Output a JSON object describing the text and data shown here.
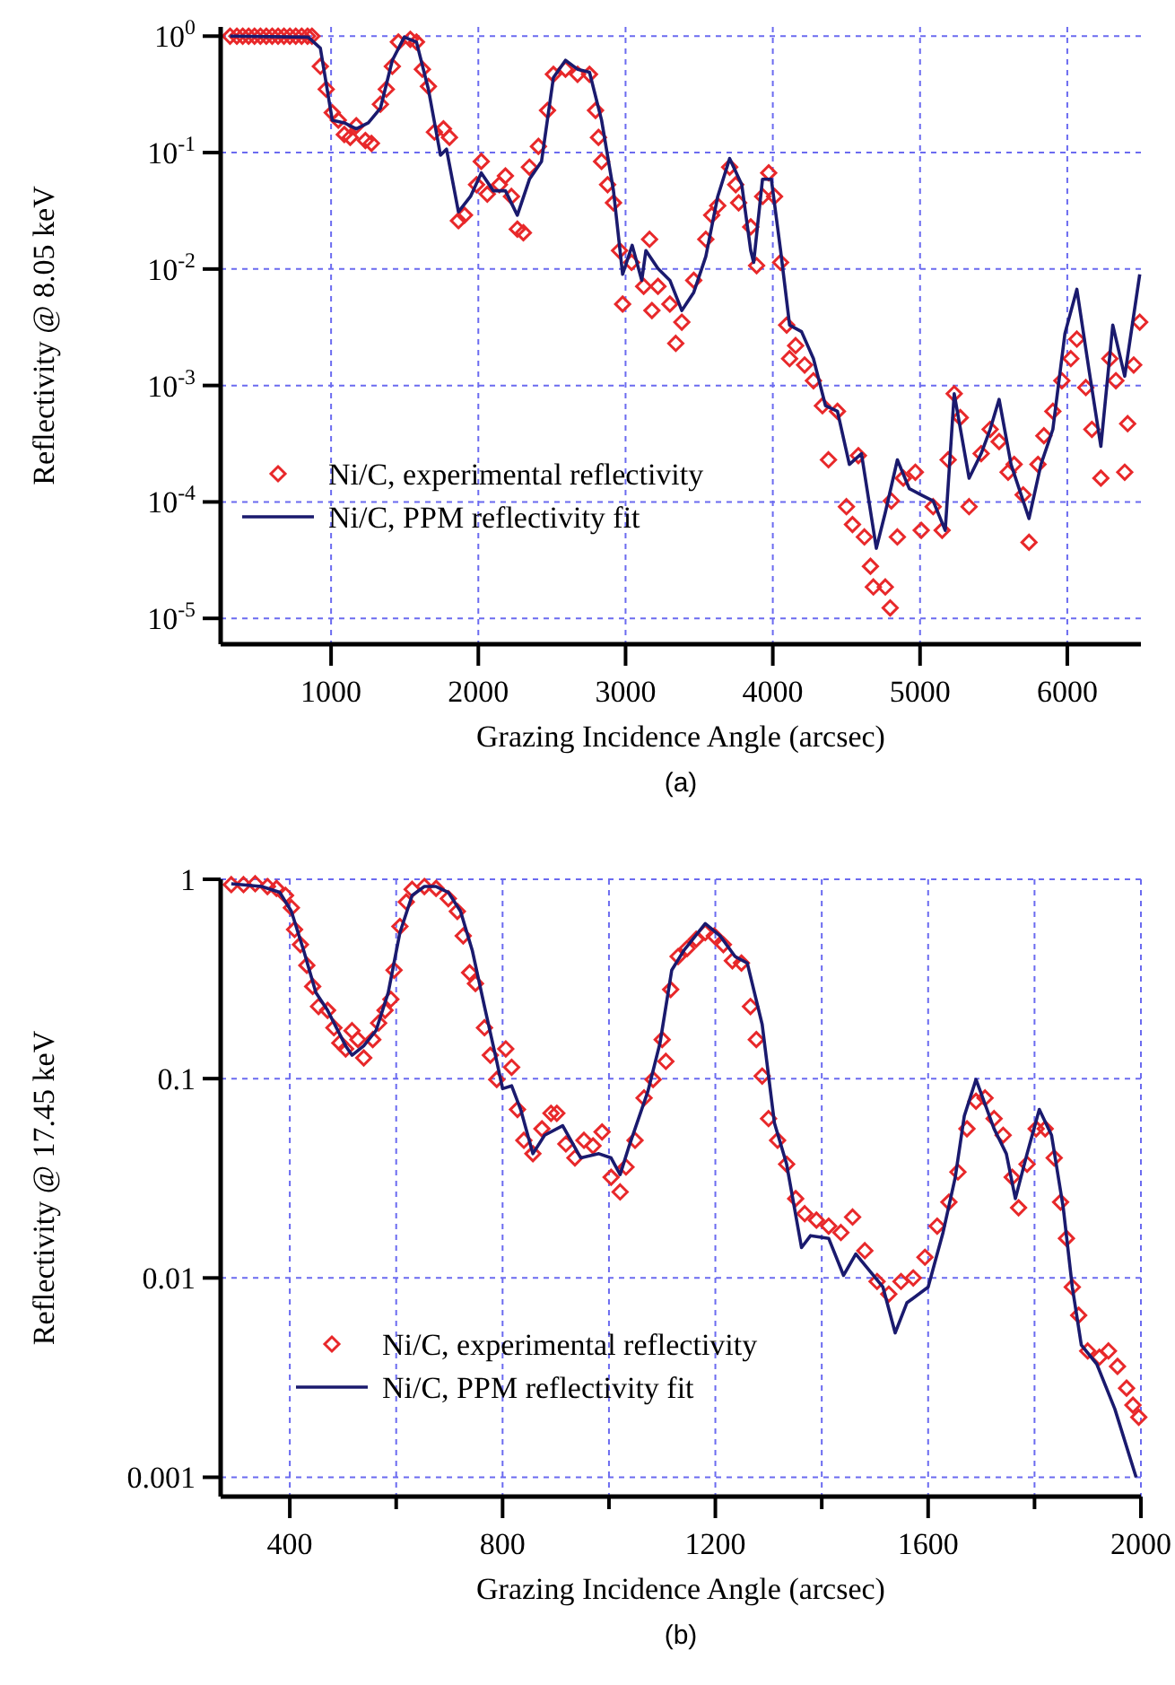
{
  "chart_data": [
    {
      "type": "scatter",
      "xlabel": "Grazing Incidence Angle (arcsec)",
      "ylabel": "Reflectivity @ 8.05 keV",
      "annotations": [
        "(a)"
      ],
      "log": "y",
      "grid": true,
      "legend": "bottom left",
      "xlim": [
        250,
        6500
      ],
      "ylim": [
        6e-06,
        1.2
      ],
      "xticks": [
        1000,
        2000,
        3000,
        4000,
        5000,
        6000
      ],
      "yticks": [
        {
          "value": 1,
          "label": "10$^{0}$"
        },
        {
          "value": 0.1,
          "label": "10$^{-1}$"
        },
        {
          "value": 0.01,
          "label": "10$^{-2}$"
        },
        {
          "value": 0.001,
          "label": "10$^{-3}$"
        },
        {
          "value": 0.0001,
          "label": "10$^{-4}$"
        },
        {
          "value": 1e-05,
          "label": "10$^{-5}$"
        }
      ],
      "series": [
        {
          "name": "Ni/C, experimental reflectivity",
          "marker": "diamond",
          "color": "#e8282a",
          "x": [
            314,
            360,
            400,
            440,
            480,
            520,
            560,
            600,
            640,
            680,
            720,
            760,
            800,
            840,
            870,
            927,
            967,
            1008,
            1049,
            1090,
            1130,
            1171,
            1233,
            1274,
            1335,
            1375,
            1416,
            1457,
            1538,
            1580,
            1620,
            1661,
            1702,
            1763,
            1804,
            1865,
            1906,
            1988,
            2020,
            2061,
            2143,
            2184,
            2225,
            2265,
            2306,
            2347,
            2408,
            2470,
            2510,
            2592,
            2674,
            2755,
            2796,
            2816,
            2837,
            2878,
            2918,
            2959,
            2980,
            3041,
            3123,
            3163,
            3179,
            3220,
            3301,
            3341,
            3382,
            3463,
            3545,
            3585,
            3626,
            3707,
            3748,
            3768,
            3850,
            3890,
            3931,
            3972,
            4012,
            4053,
            4094,
            4114,
            4155,
            4216,
            4276,
            4337,
            4378,
            4439,
            4500,
            4541,
            4581,
            4622,
            4663,
            4683,
            4764,
            4797,
            4805,
            4846,
            4886,
            4968,
            5008,
            5089,
            5150,
            5191,
            5232,
            5273,
            5333,
            5415,
            5476,
            5537,
            5598,
            5639,
            5700,
            5740,
            5801,
            5841,
            5902,
            5963,
            6024,
            6065,
            6126,
            6167,
            6228,
            6289,
            6330,
            6390,
            6410,
            6451,
            6492
          ],
          "values": [
            1,
            1,
            1,
            1,
            1,
            1,
            1,
            1,
            1,
            1,
            1,
            1,
            1,
            1,
            1,
            0.55,
            0.35,
            0.22,
            0.19,
            0.143,
            0.135,
            0.17,
            0.127,
            0.12,
            0.26,
            0.35,
            0.55,
            0.89,
            0.94,
            0.89,
            0.52,
            0.37,
            0.15,
            0.16,
            0.135,
            0.026,
            0.029,
            0.053,
            0.084,
            0.044,
            0.053,
            0.063,
            0.042,
            0.022,
            0.0205,
            0.075,
            0.113,
            0.23,
            0.47,
            0.52,
            0.47,
            0.47,
            0.23,
            0.135,
            0.084,
            0.053,
            0.037,
            0.0144,
            0.005,
            0.0114,
            0.0071,
            0.018,
            0.0044,
            0.0071,
            0.005,
            0.0023,
            0.0035,
            0.008,
            0.018,
            0.029,
            0.035,
            0.075,
            0.053,
            0.037,
            0.023,
            0.0107,
            0.042,
            0.067,
            0.042,
            0.0114,
            0.0033,
            0.0017,
            0.0022,
            0.0015,
            0.0011,
            0.00067,
            0.00023,
            0.0006,
            9.1e-05,
            6.4e-05,
            0.00025,
            5e-05,
            2.8e-05,
            1.86e-05,
            1.86e-05,
            1.23e-05,
            0.000102,
            5e-05,
            0.00016,
            0.00018,
            5.7e-05,
            9.1e-05,
            5.7e-05,
            0.00023,
            0.00085,
            0.00053,
            9.1e-05,
            0.00026,
            0.00042,
            0.00033,
            0.00018,
            0.00021,
            0.000115,
            4.5e-05,
            0.00021,
            0.00037,
            0.0006,
            0.0011,
            0.0017,
            0.0025,
            0.00096,
            0.00042,
            0.00016,
            0.0017,
            0.0011,
            0.00018,
            0.00047,
            0.0015,
            0.0035
          ]
        },
        {
          "name": "Ni/C, PPM reflectivity fit",
          "type": "line",
          "marker": "none",
          "color": "#1a1a6e",
          "x": [
            314,
            845,
            927,
            1008,
            1090,
            1171,
            1253,
            1335,
            1416,
            1497,
            1580,
            1661,
            1743,
            1784,
            1865,
            1947,
            2020,
            2102,
            2184,
            2265,
            2347,
            2429,
            2510,
            2592,
            2674,
            2755,
            2837,
            2918,
            2980,
            3045,
            3110,
            3138,
            3220,
            3301,
            3382,
            3463,
            3545,
            3626,
            3707,
            3789,
            3850,
            3870,
            3930,
            3990,
            4053,
            4114,
            4195,
            4276,
            4358,
            4439,
            4520,
            4602,
            4703,
            4764,
            4846,
            4927,
            5008,
            5089,
            5171,
            5232,
            5333,
            5415,
            5476,
            5537,
            5618,
            5740,
            5821,
            5902,
            5984,
            6065,
            6146,
            6228,
            6309,
            6390,
            6492
          ],
          "values": [
            1,
            0.98,
            0.79,
            0.19,
            0.18,
            0.16,
            0.18,
            0.24,
            0.62,
            0.98,
            0.89,
            0.35,
            0.095,
            0.107,
            0.031,
            0.042,
            0.067,
            0.047,
            0.047,
            0.029,
            0.059,
            0.084,
            0.44,
            0.62,
            0.52,
            0.49,
            0.19,
            0.047,
            0.009,
            0.016,
            0.008,
            0.0144,
            0.0101,
            0.008,
            0.0044,
            0.0063,
            0.0128,
            0.042,
            0.089,
            0.053,
            0.0144,
            0.0114,
            0.059,
            0.059,
            0.0144,
            0.0033,
            0.0029,
            0.0017,
            0.00067,
            0.0006,
            0.00021,
            0.00026,
            4e-05,
            8.1e-05,
            0.00023,
            0.00013,
            0.000115,
            0.000102,
            5.7e-05,
            0.00085,
            0.00016,
            0.00026,
            0.00042,
            0.00076,
            0.00021,
            7.2e-05,
            0.00021,
            0.00042,
            0.0028,
            0.0067,
            0.0014,
            0.0003,
            0.0033,
            0.0012,
            0.009
          ]
        }
      ]
    },
    {
      "type": "scatter",
      "xlabel": "Grazing Incidence Angle (arcsec)",
      "ylabel": "Reflectivity @ 17.45 keV",
      "annotations": [
        "(b)"
      ],
      "log": "y",
      "grid": true,
      "legend": "bottom left",
      "xlim": [
        270,
        2000
      ],
      "ylim": [
        0.0008,
        1
      ],
      "xticks": [
        400,
        {
          "value": 600,
          "label": null
        },
        800,
        {
          "value": 1000,
          "label": null
        },
        1200,
        {
          "value": 1400,
          "label": null
        },
        1600,
        {
          "value": 1800,
          "label": null
        },
        2000
      ],
      "yticks": [
        1,
        0.1,
        0.01,
        0.001
      ],
      "series": [
        {
          "name": "Ni/C, experimental reflectivity",
          "marker": "diamond",
          "color": "#e8282a",
          "x": [
            290,
            313,
            335,
            358,
            375,
            392,
            403,
            409,
            420,
            432,
            443,
            454,
            471,
            483,
            494,
            505,
            517,
            528,
            539,
            556,
            567,
            579,
            590,
            596,
            607,
            619,
            630,
            653,
            675,
            698,
            715,
            726,
            738,
            749,
            766,
            777,
            789,
            806,
            817,
            828,
            840,
            857,
            874,
            891,
            902,
            919,
            936,
            953,
            970,
            987,
            1004,
            1021,
            1032,
            1049,
            1066,
            1083,
            1100,
            1107,
            1116,
            1130,
            1147,
            1164,
            1181,
            1198,
            1215,
            1232,
            1249,
            1266,
            1277,
            1288,
            1300,
            1317,
            1334,
            1351,
            1368,
            1390,
            1413,
            1436,
            1458,
            1481,
            1504,
            1526,
            1549,
            1572,
            1594,
            1617,
            1639,
            1656,
            1673,
            1690,
            1707,
            1724,
            1741,
            1758,
            1770,
            1786,
            1803,
            1820,
            1837,
            1849,
            1860,
            1871,
            1883,
            1900,
            1922,
            1939,
            1956,
            1973,
            1985,
            1996
          ],
          "values": [
            0.94,
            0.94,
            0.95,
            0.92,
            0.9,
            0.83,
            0.72,
            0.56,
            0.47,
            0.37,
            0.29,
            0.23,
            0.22,
            0.18,
            0.151,
            0.141,
            0.174,
            0.157,
            0.127,
            0.157,
            0.19,
            0.22,
            0.25,
            0.35,
            0.58,
            0.77,
            0.89,
            0.92,
            0.9,
            0.8,
            0.69,
            0.52,
            0.34,
            0.3,
            0.18,
            0.131,
            0.099,
            0.141,
            0.114,
            0.07,
            0.049,
            0.042,
            0.056,
            0.067,
            0.067,
            0.047,
            0.04,
            0.049,
            0.046,
            0.054,
            0.032,
            0.027,
            0.036,
            0.049,
            0.08,
            0.099,
            0.157,
            0.122,
            0.28,
            0.41,
            0.45,
            0.5,
            0.54,
            0.52,
            0.47,
            0.39,
            0.38,
            0.23,
            0.157,
            0.103,
            0.063,
            0.049,
            0.0372,
            0.025,
            0.021,
            0.0195,
            0.0182,
            0.0169,
            0.0202,
            0.0137,
            0.0096,
            0.0083,
            0.0096,
            0.01,
            0.0127,
            0.0182,
            0.024,
            0.034,
            0.056,
            0.077,
            0.08,
            0.063,
            0.052,
            0.032,
            0.0225,
            0.0372,
            0.056,
            0.056,
            0.04,
            0.024,
            0.0158,
            0.009,
            0.0065,
            0.0043,
            0.004,
            0.0043,
            0.0036,
            0.0028,
            0.0023,
            0.002
          ]
        },
        {
          "name": "Ni/C, PPM reflectivity fit",
          "type": "line",
          "marker": "none",
          "color": "#1a1a6e",
          "x": [
            290,
            347,
            381,
            403,
            426,
            449,
            471,
            505,
            517,
            539,
            562,
            585,
            607,
            630,
            653,
            675,
            698,
            721,
            743,
            766,
            789,
            800,
            817,
            834,
            857,
            879,
            913,
            947,
            981,
            1004,
            1021,
            1038,
            1073,
            1096,
            1118,
            1141,
            1181,
            1209,
            1237,
            1260,
            1288,
            1311,
            1334,
            1362,
            1379,
            1413,
            1441,
            1464,
            1515,
            1538,
            1560,
            1600,
            1628,
            1651,
            1668,
            1690,
            1724,
            1747,
            1764,
            1786,
            1809,
            1832,
            1854,
            1871,
            1888,
            1917,
            1951,
            1991
          ],
          "values": [
            0.95,
            0.92,
            0.86,
            0.69,
            0.44,
            0.27,
            0.22,
            0.146,
            0.131,
            0.146,
            0.174,
            0.27,
            0.54,
            0.83,
            0.92,
            0.92,
            0.86,
            0.69,
            0.44,
            0.23,
            0.122,
            0.089,
            0.092,
            0.07,
            0.042,
            0.052,
            0.058,
            0.04,
            0.042,
            0.04,
            0.033,
            0.046,
            0.086,
            0.151,
            0.35,
            0.44,
            0.6,
            0.52,
            0.41,
            0.38,
            0.187,
            0.06,
            0.0372,
            0.0142,
            0.0163,
            0.0158,
            0.0103,
            0.0132,
            0.009,
            0.0053,
            0.0075,
            0.009,
            0.0169,
            0.032,
            0.065,
            0.099,
            0.056,
            0.042,
            0.025,
            0.042,
            0.07,
            0.052,
            0.0225,
            0.009,
            0.0046,
            0.0037,
            0.0022,
            0.001
          ]
        }
      ]
    }
  ]
}
